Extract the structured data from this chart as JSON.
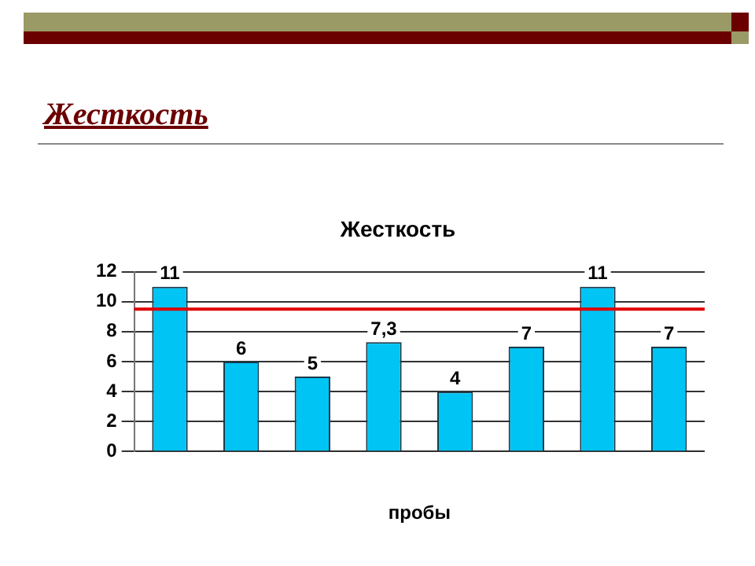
{
  "chart_data": {
    "type": "bar",
    "title": "Жесткость",
    "subtitle": "Жесткость",
    "xlabel": "пробы",
    "categories": [
      null,
      null,
      null,
      null,
      null,
      null,
      null,
      null
    ],
    "values": [
      11,
      6,
      5,
      7.3,
      4,
      7,
      11,
      7
    ],
    "value_labels": [
      "11",
      "6",
      "5",
      "7,3",
      "4",
      "7",
      "11",
      "7"
    ],
    "color": "#00c4f4",
    "ylim": [
      0,
      12
    ],
    "yticks": [
      0,
      2,
      4,
      6,
      8,
      10,
      12
    ],
    "grid": "y",
    "legend": false,
    "ref_lines": [
      {
        "axis": "y",
        "value": 9.5,
        "color": "#e00000"
      }
    ]
  }
}
